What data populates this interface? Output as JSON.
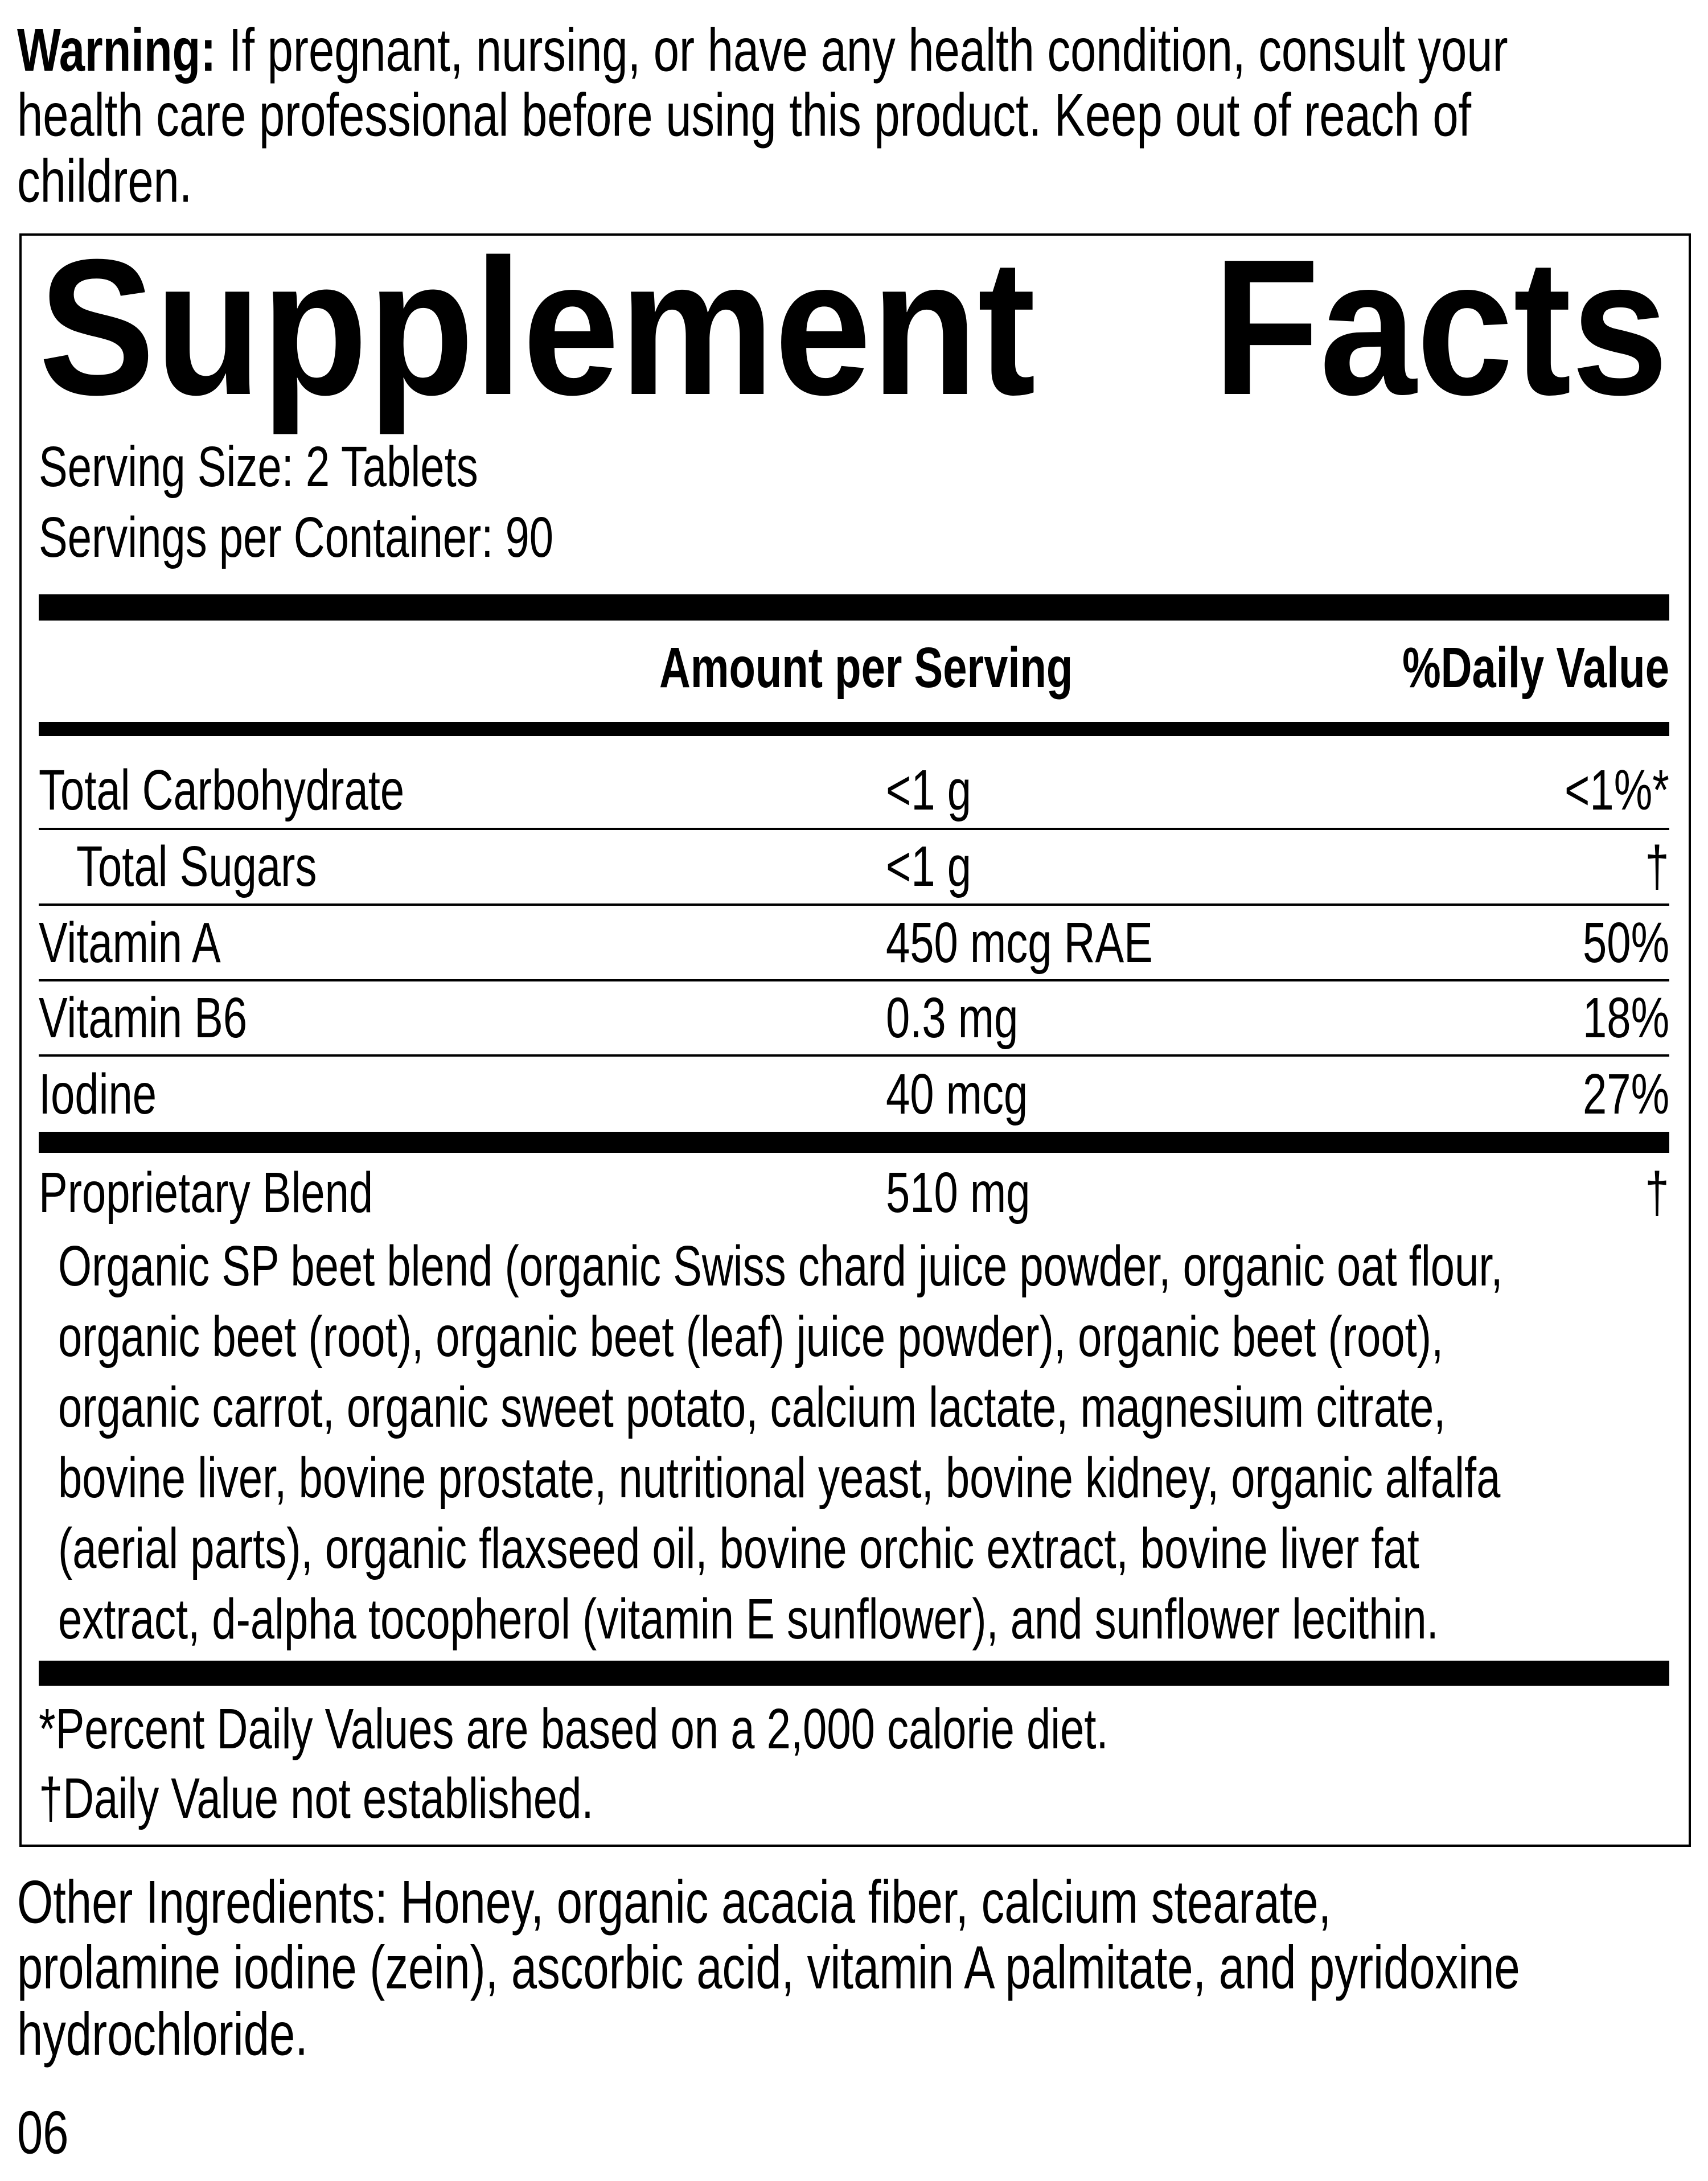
{
  "warning": {
    "label": "Warning:",
    "lines": [
      " If pregnant, nursing, or have any health condition, consult your",
      "health care professional before using this product. Keep out of reach of",
      "children."
    ]
  },
  "facts": {
    "title_word1": "Supplement",
    "title_word2": "Facts",
    "serving_size": "Serving Size: 2 Tablets",
    "servings_per_container": "Servings per Container: 90",
    "header": {
      "amount": "Amount per Serving",
      "daily_value": "%Daily Value"
    },
    "rows": [
      {
        "name": "Total Carbohydrate",
        "amount": "<1 g",
        "dv": "<1%*"
      },
      {
        "name": "Total Sugars",
        "amount": "<1 g",
        "dv": "†"
      },
      {
        "name": "Vitamin A",
        "amount": "450 mcg RAE",
        "dv": "50%"
      },
      {
        "name": "Vitamin B6",
        "amount": "0.3 mg",
        "dv": "18%"
      },
      {
        "name": "Iodine",
        "amount": "40 mcg",
        "dv": "27%"
      }
    ],
    "blend": {
      "name": "Proprietary Blend",
      "amount": "510 mg",
      "dv": "†",
      "ingredients_lines": [
        "Organic SP beet blend (organic Swiss chard juice powder, organic oat flour,",
        "organic beet (root), organic beet (leaf) juice powder), organic beet (root),",
        "organic carrot, organic sweet potato, calcium lactate, magnesium citrate,",
        "bovine liver, bovine prostate, nutritional yeast, bovine kidney, organic alfalfa",
        "(aerial parts), organic flaxseed oil, bovine orchic extract, bovine liver fat",
        "extract, d-alpha tocopherol (vitamin E sunflower), and sunflower lecithin."
      ]
    },
    "footnotes": [
      "*Percent Daily Values are based on a 2,000 calorie diet.",
      "†Daily Value not established."
    ]
  },
  "other_ingredients": [
    "Other Ingredients: Honey, organic acacia fiber, calcium stearate,",
    "prolamine iodine (zein), ascorbic acid, vitamin A palmitate, and pyridoxine",
    "hydrochloride."
  ],
  "code": "06"
}
